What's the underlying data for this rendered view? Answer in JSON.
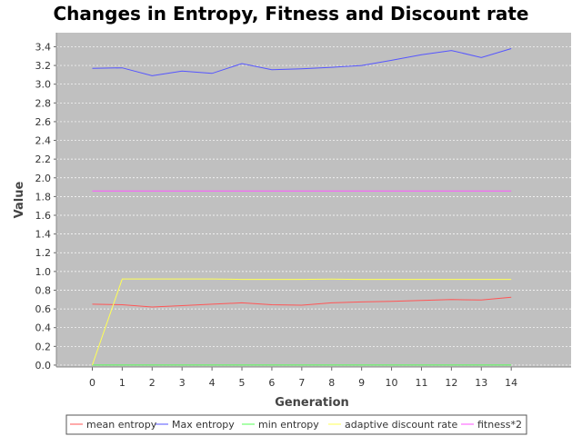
{
  "chart_data": {
    "type": "line",
    "title": "Changes in Entropy, Fitness and Discount rate",
    "xlabel": "Generation",
    "ylabel": "Value",
    "x": [
      0,
      1,
      2,
      3,
      4,
      5,
      6,
      7,
      8,
      9,
      10,
      11,
      12,
      13,
      14
    ],
    "xlim": [
      -1.2,
      16
    ],
    "ylim": [
      -0.02,
      3.55
    ],
    "yticks": [
      0.0,
      0.2,
      0.4,
      0.6,
      0.8,
      1.0,
      1.2,
      1.4,
      1.6,
      1.8,
      2.0,
      2.2,
      2.4,
      2.6,
      2.8,
      3.0,
      3.2,
      3.4
    ],
    "grid": true,
    "legend_position": "bottom",
    "background": "#c0c0c0",
    "series": [
      {
        "name": "mean entropy",
        "color": "#ff5555",
        "values": [
          0.65,
          0.645,
          0.62,
          0.635,
          0.65,
          0.665,
          0.645,
          0.64,
          0.665,
          0.675,
          0.68,
          0.69,
          0.7,
          0.695,
          0.725
        ]
      },
      {
        "name": "Max entropy",
        "color": "#5555ff",
        "values": [
          3.17,
          3.175,
          3.09,
          3.14,
          3.115,
          3.22,
          3.155,
          3.165,
          3.18,
          3.2,
          3.255,
          3.315,
          3.36,
          3.285,
          3.38
        ]
      },
      {
        "name": "min entropy",
        "color": "#55ff55",
        "values": [
          0.0,
          0.0,
          0.0,
          0.0,
          0.0,
          0.0,
          0.0,
          0.0,
          0.0,
          0.0,
          0.0,
          0.0,
          0.0,
          0.0,
          0.0
        ]
      },
      {
        "name": "adaptive discount rate",
        "color": "#ffff55",
        "values": [
          0.0,
          0.92,
          0.92,
          0.92,
          0.92,
          0.915,
          0.915,
          0.915,
          0.918,
          0.915,
          0.915,
          0.915,
          0.915,
          0.915,
          0.915
        ]
      },
      {
        "name": "fitness*2",
        "color": "#ff55ff",
        "values": [
          1.86,
          1.86,
          1.86,
          1.86,
          1.86,
          1.86,
          1.86,
          1.86,
          1.86,
          1.86,
          1.86,
          1.86,
          1.86,
          1.86,
          1.86
        ]
      }
    ]
  }
}
